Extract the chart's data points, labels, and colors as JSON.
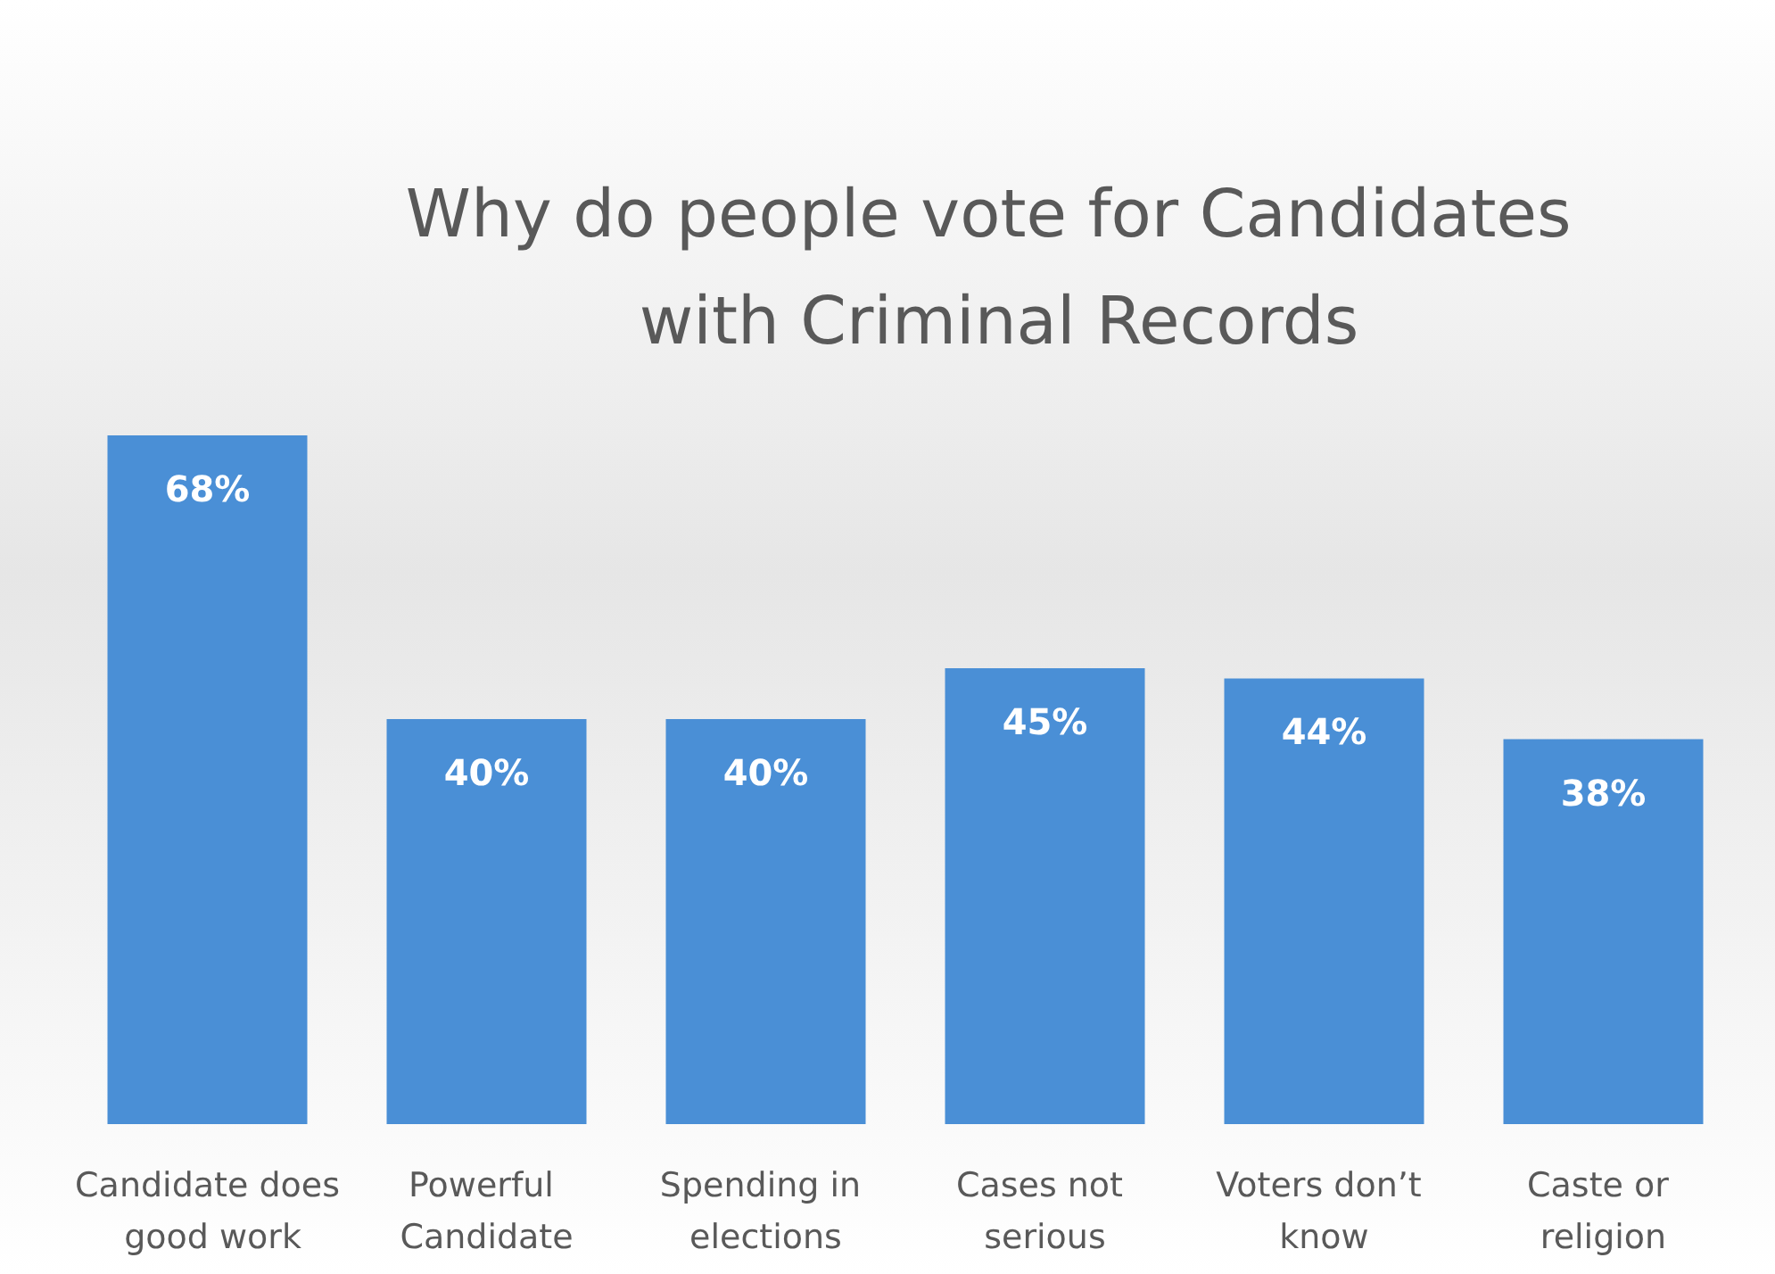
{
  "chart_data": {
    "type": "bar",
    "title": "Why do people vote for Candidates with Criminal Records",
    "categories": [
      "Candidate does good work",
      "Powerful Candidate",
      "Spending in elections",
      "Cases not serious",
      "Voters don’t know",
      "Caste or religion"
    ],
    "values": [
      68,
      40,
      40,
      45,
      44,
      38
    ],
    "value_labels": [
      "68%",
      "40%",
      "40%",
      "45%",
      "44%",
      "38%"
    ],
    "color": "#4a8fd6"
  }
}
